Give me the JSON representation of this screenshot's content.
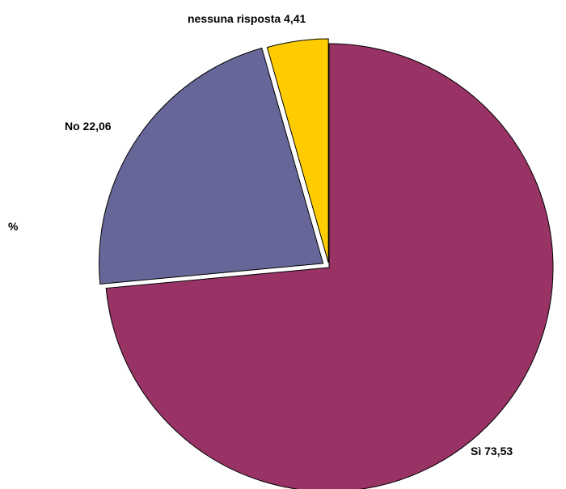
{
  "chart_data": {
    "type": "pie",
    "unit_label": "%",
    "slices": [
      {
        "name": "Sì",
        "value": 73.53,
        "label": "Sì 73,53",
        "color": "#993366"
      },
      {
        "name": "No",
        "value": 22.06,
        "label": "No 22,06",
        "color": "#666699"
      },
      {
        "name": "nessuna risposta",
        "value": 4.41,
        "label": "nessuna risposta 4,41",
        "color": "#FFCC00"
      }
    ]
  }
}
